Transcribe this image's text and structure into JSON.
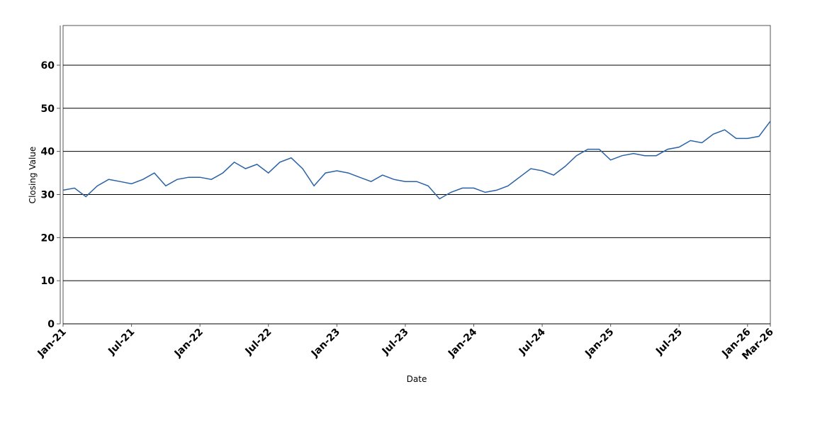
{
  "chart_data": {
    "type": "line",
    "x_label": "Date",
    "y_label": "Closing Value",
    "x": [
      "Jan-21",
      "Feb-21",
      "Mar-21",
      "Apr-21",
      "May-21",
      "Jun-21",
      "Jul-21",
      "Aug-21",
      "Sep-21",
      "Oct-21",
      "Nov-21",
      "Dec-21",
      "Jan-22",
      "Feb-22",
      "Mar-22",
      "Apr-22",
      "May-22",
      "Jun-22",
      "Jul-22",
      "Aug-22",
      "Sep-22",
      "Oct-22",
      "Nov-22",
      "Dec-22",
      "Jan-23",
      "Feb-23",
      "Mar-23",
      "Apr-23",
      "May-23",
      "Jun-23",
      "Jul-23",
      "Aug-23",
      "Sep-23",
      "Oct-23",
      "Nov-23",
      "Dec-23",
      "Jan-24",
      "Feb-24",
      "Mar-24",
      "Apr-24",
      "May-24",
      "Jun-24",
      "Jul-24",
      "Aug-24",
      "Sep-24",
      "Oct-24",
      "Nov-24",
      "Dec-24",
      "Jan-25",
      "Feb-25",
      "Mar-25",
      "Apr-25",
      "May-25",
      "Jun-25",
      "Jul-25",
      "Aug-25",
      "Sep-25",
      "Oct-25",
      "Nov-25",
      "Dec-25",
      "Jan-26",
      "Feb-26",
      "Mar-26"
    ],
    "series": [
      {
        "name": "Closing Value",
        "color": "#2a62a6",
        "values": [
          31,
          31.5,
          29.5,
          32,
          33.5,
          33,
          32.5,
          33.5,
          35,
          32,
          33.5,
          34,
          34,
          33.5,
          35,
          37.5,
          36,
          37,
          35,
          37.5,
          38.5,
          36,
          32,
          35,
          35.5,
          35,
          34,
          33,
          34.5,
          33.5,
          33,
          33,
          32,
          29,
          30.5,
          31.5,
          31.5,
          30.5,
          31,
          32,
          34,
          36,
          35.5,
          34.5,
          36.5,
          39,
          40.5,
          40.5,
          38,
          39,
          39.5,
          39,
          39,
          40.5,
          41,
          42.5,
          42,
          44,
          45,
          43,
          43,
          43.5,
          47
        ]
      }
    ],
    "xticks": [
      "Jan-21",
      "Jul-21",
      "Jan-22",
      "Jul-22",
      "Jan-23",
      "Jul-23",
      "Jan-24",
      "Jul-24",
      "Jan-25",
      "Jul-25",
      "Jan-26",
      "Mar-26"
    ],
    "ylim": [
      0,
      69.2
    ],
    "yticks": [
      0,
      10,
      20,
      30,
      40,
      50,
      60
    ],
    "grid": true
  }
}
